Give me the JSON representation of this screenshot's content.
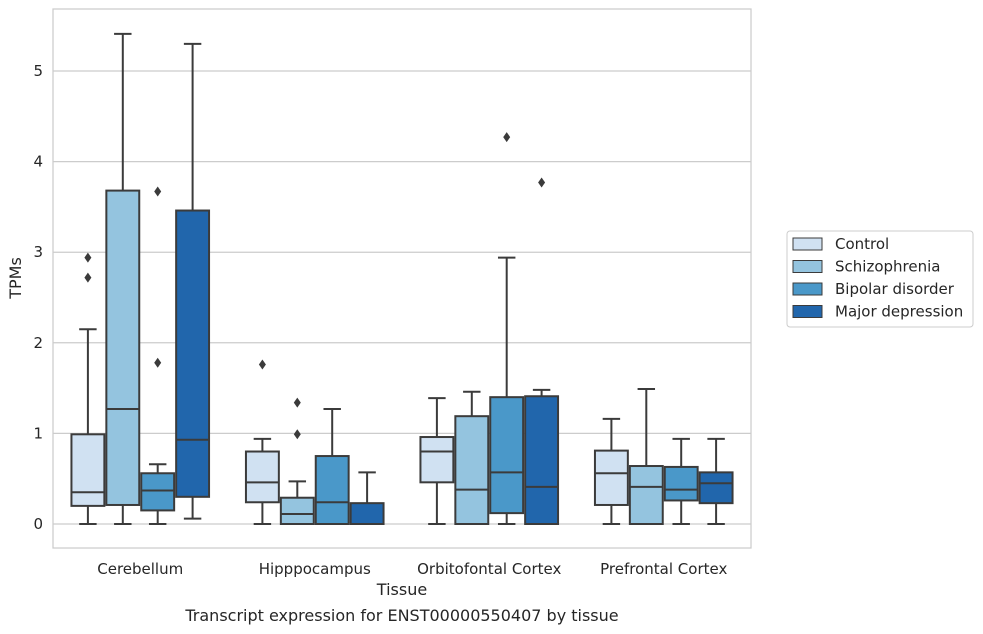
{
  "caption": "Transcript expression for ENST00000550407 by tissue",
  "chart_data": {
    "type": "boxplot",
    "xlabel": "Tissue",
    "ylabel": "TPMs",
    "ylim": [
      -0.27,
      5.7
    ],
    "yticks": [
      0,
      1,
      2,
      3,
      4,
      5
    ],
    "grid": "horizontal",
    "legend_position": "right",
    "categories": [
      "Cerebellum",
      "Hipppocampus",
      "Orbitofontal Cortex",
      "Prefrontal Cortex"
    ],
    "series": [
      {
        "name": "Control",
        "color": "#d0e1f2",
        "boxes": [
          {
            "whisker_low": 0.0,
            "q1": 0.2,
            "median": 0.35,
            "q3": 0.99,
            "whisker_high": 2.15,
            "outliers": [
              2.72,
              2.94
            ]
          },
          {
            "whisker_low": 0.0,
            "q1": 0.24,
            "median": 0.46,
            "q3": 0.8,
            "whisker_high": 0.94,
            "outliers": [
              1.76
            ]
          },
          {
            "whisker_low": 0.0,
            "q1": 0.46,
            "median": 0.8,
            "q3": 0.96,
            "whisker_high": 1.39,
            "outliers": []
          },
          {
            "whisker_low": 0.0,
            "q1": 0.21,
            "median": 0.56,
            "q3": 0.81,
            "whisker_high": 1.16,
            "outliers": []
          }
        ]
      },
      {
        "name": "Schizophrenia",
        "color": "#94c4df",
        "boxes": [
          {
            "whisker_low": 0.0,
            "q1": 0.21,
            "median": 1.27,
            "q3": 3.68,
            "whisker_high": 5.41,
            "outliers": []
          },
          {
            "whisker_low": 0.0,
            "q1": 0.0,
            "median": 0.11,
            "q3": 0.29,
            "whisker_high": 0.47,
            "outliers": [
              0.99,
              1.34
            ]
          },
          {
            "whisker_low": 0.0,
            "q1": 0.0,
            "median": 0.38,
            "q3": 1.19,
            "whisker_high": 1.46,
            "outliers": []
          },
          {
            "whisker_low": 0.0,
            "q1": 0.0,
            "median": 0.41,
            "q3": 0.64,
            "whisker_high": 1.49,
            "outliers": []
          }
        ]
      },
      {
        "name": "Bipolar disorder",
        "color": "#4a98c9",
        "boxes": [
          {
            "whisker_low": 0.0,
            "q1": 0.15,
            "median": 0.37,
            "q3": 0.56,
            "whisker_high": 0.66,
            "outliers": [
              1.78,
              3.67
            ]
          },
          {
            "whisker_low": 0.0,
            "q1": 0.0,
            "median": 0.24,
            "q3": 0.75,
            "whisker_high": 1.27,
            "outliers": []
          },
          {
            "whisker_low": 0.0,
            "q1": 0.12,
            "median": 0.57,
            "q3": 1.4,
            "whisker_high": 2.94,
            "outliers": [
              4.27
            ]
          },
          {
            "whisker_low": 0.0,
            "q1": 0.26,
            "median": 0.38,
            "q3": 0.63,
            "whisker_high": 0.94,
            "outliers": []
          }
        ]
      },
      {
        "name": "Major depression",
        "color": "#2166ac",
        "boxes": [
          {
            "whisker_low": 0.06,
            "q1": 0.3,
            "median": 0.93,
            "q3": 3.46,
            "whisker_high": 5.3,
            "outliers": []
          },
          {
            "whisker_low": 0.0,
            "q1": 0.0,
            "median": 0.0,
            "q3": 0.23,
            "whisker_high": 0.57,
            "outliers": []
          },
          {
            "whisker_low": 0.0,
            "q1": 0.0,
            "median": 0.41,
            "q3": 1.41,
            "whisker_high": 1.48,
            "outliers": [
              3.77
            ]
          },
          {
            "whisker_low": 0.0,
            "q1": 0.23,
            "median": 0.45,
            "q3": 0.57,
            "whisker_high": 0.94,
            "outliers": []
          }
        ]
      }
    ]
  }
}
